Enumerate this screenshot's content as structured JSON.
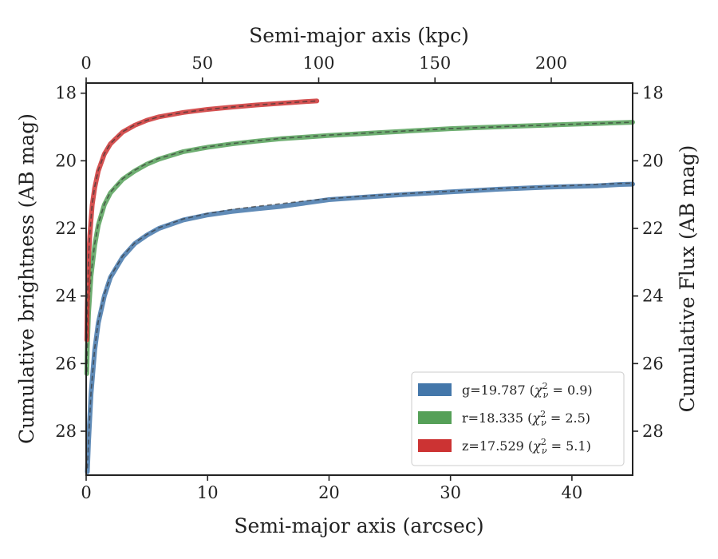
{
  "chart_data": {
    "type": "line",
    "title": "",
    "xlabel": "Semi-major axis (arcsec)",
    "ylabel": "Cumulative brightness (AB mag)",
    "x2label": "Semi-major axis (kpc)",
    "y2label": "Cumulative Flux (AB mag)",
    "xlim": [
      0,
      45
    ],
    "ylim": [
      29.3,
      17.7
    ],
    "x2lim": [
      0,
      235
    ],
    "y_inverted": true,
    "xticks": [
      "0",
      "10",
      "20",
      "30",
      "40"
    ],
    "yticks": [
      "18",
      "20",
      "22",
      "24",
      "26",
      "28"
    ],
    "x2ticks": [
      "0",
      "50",
      "100",
      "150",
      "200"
    ],
    "y2ticks": [
      "18",
      "20",
      "22",
      "24",
      "26",
      "28"
    ],
    "grid": false,
    "legend_position": "lower-right",
    "series": [
      {
        "name": "g=19.787",
        "chi2": "0.9",
        "color": "#4477aa",
        "x": [
          0.1,
          0.2,
          0.4,
          0.7,
          1,
          1.5,
          2,
          3,
          4,
          5,
          6,
          8,
          10,
          12,
          14,
          16,
          18,
          20,
          22,
          24,
          26,
          28,
          30,
          32,
          34,
          36,
          38,
          40,
          42,
          44,
          45
        ],
        "y": [
          29.2,
          28.3,
          26.9,
          25.6,
          24.8,
          24.0,
          23.45,
          22.85,
          22.45,
          22.2,
          22.0,
          21.75,
          21.6,
          21.5,
          21.42,
          21.35,
          21.25,
          21.15,
          21.1,
          21.05,
          21.0,
          20.96,
          20.92,
          20.88,
          20.84,
          20.81,
          20.78,
          20.76,
          20.74,
          20.7,
          20.69
        ],
        "model_x": [
          0.1,
          0.2,
          0.4,
          0.7,
          1,
          1.5,
          2,
          3,
          4,
          5,
          6,
          8,
          10,
          12,
          14,
          16,
          18,
          20,
          22,
          24,
          26,
          28,
          30,
          32,
          34,
          36,
          38,
          40,
          42,
          44,
          45
        ],
        "model_y": [
          29.1,
          28.25,
          26.85,
          25.55,
          24.75,
          23.95,
          23.42,
          22.82,
          22.43,
          22.18,
          21.98,
          21.72,
          21.56,
          21.44,
          21.35,
          21.27,
          21.19,
          21.12,
          21.07,
          21.02,
          20.98,
          20.94,
          20.9,
          20.86,
          20.82,
          20.79,
          20.76,
          20.73,
          20.7,
          20.67,
          20.66
        ]
      },
      {
        "name": "r=18.335",
        "chi2": "2.5",
        "color": "#55a058",
        "x": [
          0.05,
          0.1,
          0.2,
          0.4,
          0.7,
          1,
          1.5,
          2,
          3,
          4,
          5,
          6,
          8,
          10,
          12,
          14,
          16,
          18,
          20,
          25,
          30,
          35,
          40,
          45
        ],
        "y": [
          26.3,
          25.5,
          24.5,
          23.4,
          22.5,
          21.9,
          21.3,
          20.95,
          20.55,
          20.3,
          20.1,
          19.95,
          19.73,
          19.6,
          19.5,
          19.42,
          19.35,
          19.3,
          19.25,
          19.15,
          19.05,
          18.98,
          18.92,
          18.86
        ],
        "model_x": [
          0.05,
          0.1,
          0.2,
          0.4,
          0.7,
          1,
          1.5,
          2,
          3,
          4,
          5,
          6,
          8,
          10,
          12,
          14,
          16,
          18,
          20,
          25,
          30,
          35,
          40,
          45
        ],
        "model_y": [
          26.25,
          25.45,
          24.45,
          23.35,
          22.46,
          21.87,
          21.28,
          20.93,
          20.53,
          20.28,
          20.08,
          19.93,
          19.72,
          19.59,
          19.49,
          19.41,
          19.34,
          19.29,
          19.24,
          19.14,
          19.05,
          18.98,
          18.92,
          18.86
        ]
      },
      {
        "name": "z=17.529",
        "chi2": "5.1",
        "color": "#cc3333",
        "x": [
          0.05,
          0.1,
          0.2,
          0.3,
          0.5,
          0.7,
          1,
          1.5,
          2,
          3,
          4,
          5,
          6,
          8,
          10,
          12,
          14,
          16,
          18,
          19
        ],
        "y": [
          25.3,
          24.2,
          22.9,
          22.2,
          21.3,
          20.8,
          20.3,
          19.8,
          19.5,
          19.15,
          18.95,
          18.8,
          18.7,
          18.57,
          18.48,
          18.41,
          18.35,
          18.3,
          18.25,
          18.23
        ],
        "model_x": [
          0.05,
          0.1,
          0.2,
          0.3,
          0.5,
          0.7,
          1,
          1.5,
          2,
          3,
          4,
          5,
          6,
          8,
          10,
          12,
          14,
          16,
          18,
          19
        ],
        "model_y": [
          25.25,
          24.15,
          22.85,
          22.15,
          21.27,
          20.77,
          20.28,
          19.79,
          19.49,
          19.14,
          18.94,
          18.8,
          18.7,
          18.57,
          18.48,
          18.41,
          18.35,
          18.3,
          18.25,
          18.23
        ]
      }
    ]
  }
}
